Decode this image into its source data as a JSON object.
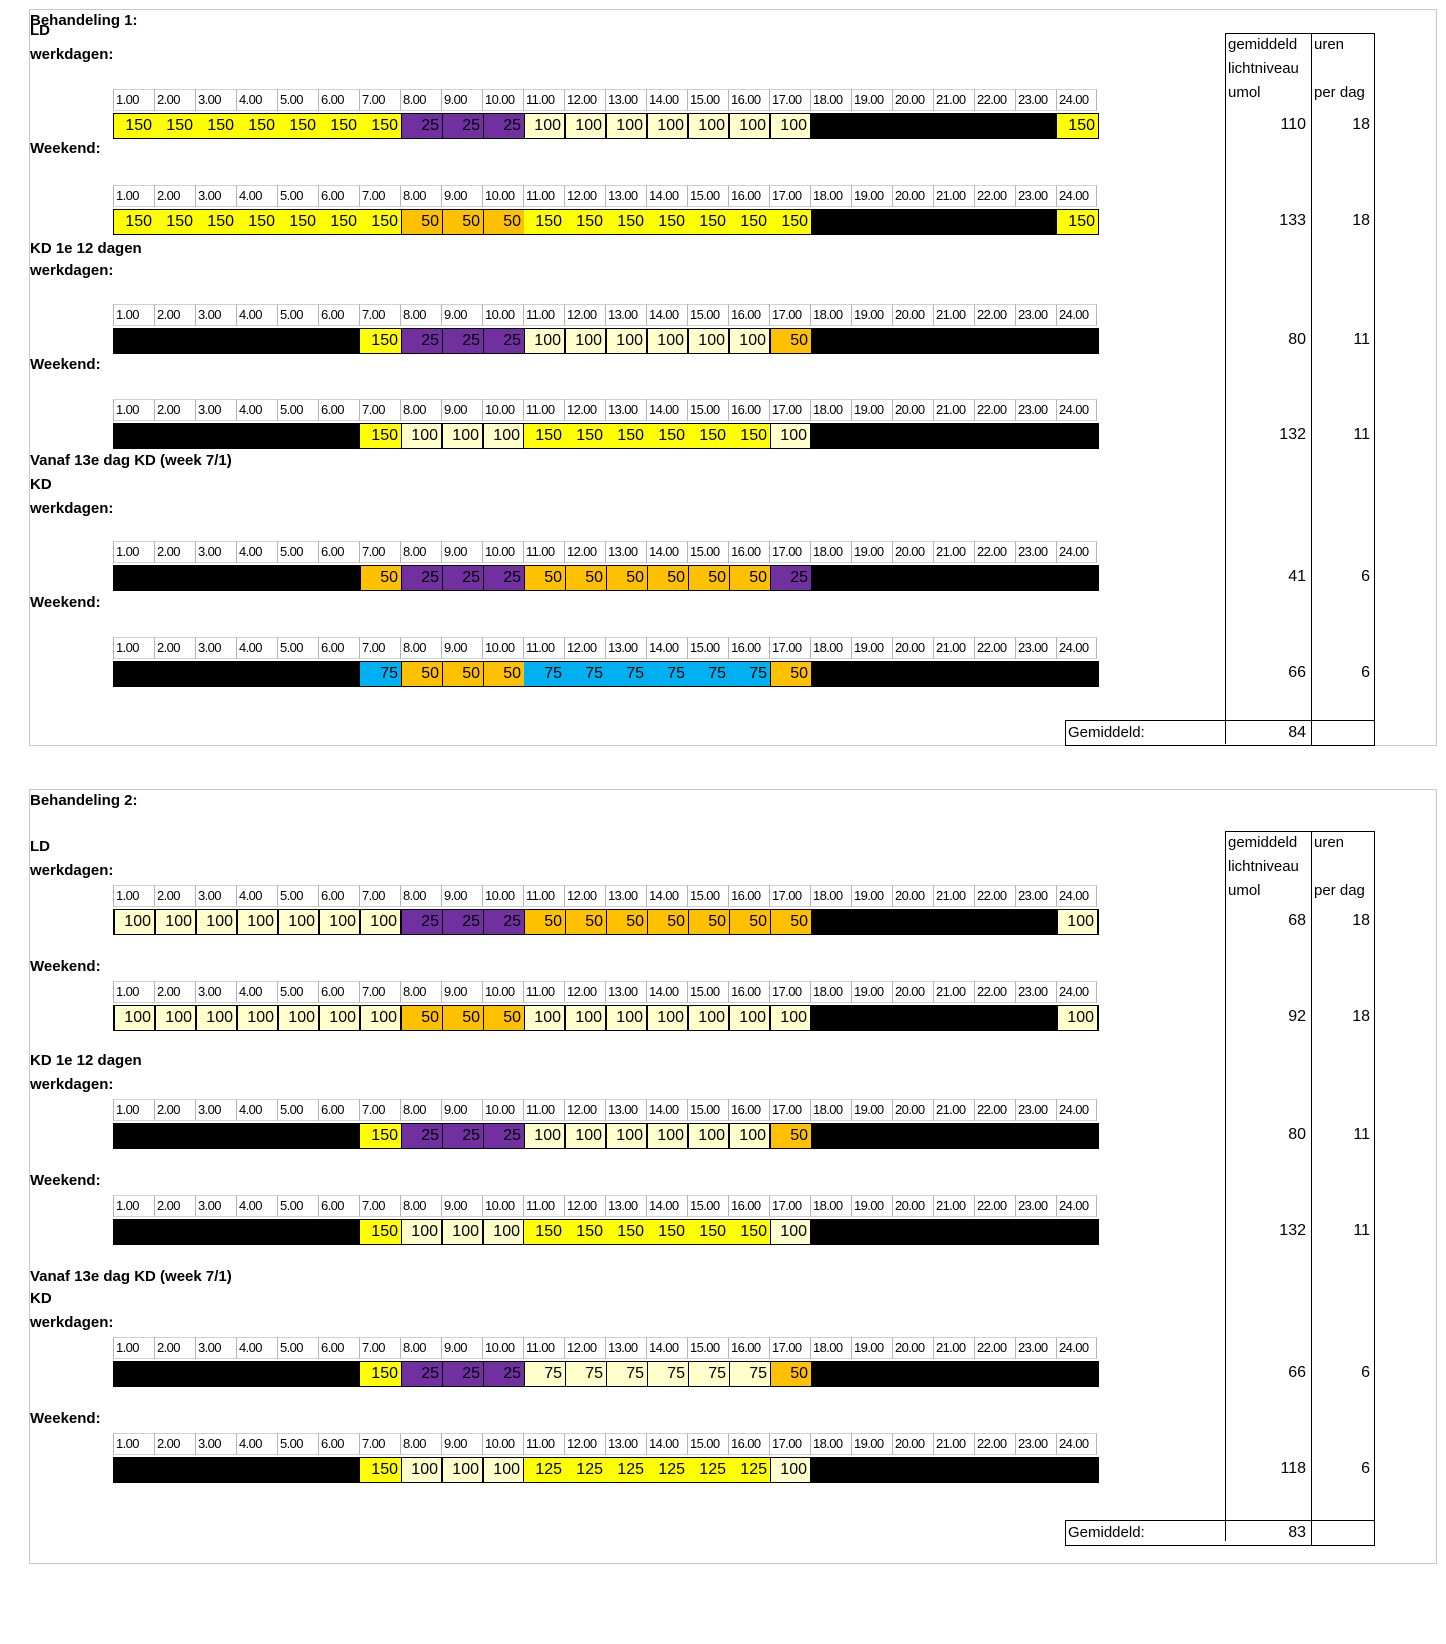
{
  "hours": [
    "1.00",
    "2.00",
    "3.00",
    "4.00",
    "5.00",
    "6.00",
    "7.00",
    "8.00",
    "9.00",
    "10.00",
    "11.00",
    "12.00",
    "13.00",
    "14.00",
    "15.00",
    "16.00",
    "17.00",
    "18.00",
    "19.00",
    "20.00",
    "21.00",
    "22.00",
    "23.00",
    "24.00"
  ],
  "side_header": {
    "col1_line1": "gemiddeld",
    "col1_line2": "lichtniveau",
    "col1_line3": "umol",
    "col2_line1": "uren",
    "col2_line3": "per dag"
  },
  "average_label": "Gemiddeld:",
  "legend_colors": {
    "150": "#ffff00",
    "125": "#ffff00",
    "100": "#ffffcc",
    "75": "#00b0f0",
    "50": "#ffc000",
    "25": "#7030a0",
    "0": "#000000"
  },
  "treatments": [
    {
      "title": "Behandeling 1:",
      "average": "84",
      "schedules": [
        {
          "labels": [
            "LD",
            "werkdagen:"
          ],
          "values": [
            150,
            150,
            150,
            150,
            150,
            150,
            150,
            25,
            25,
            25,
            100,
            100,
            100,
            100,
            100,
            100,
            100,
            0,
            0,
            0,
            0,
            0,
            0,
            150
          ],
          "avg": "110",
          "hours_per_day": "18"
        },
        {
          "labels": [
            "Weekend:"
          ],
          "values": [
            150,
            150,
            150,
            150,
            150,
            150,
            150,
            50,
            50,
            50,
            150,
            150,
            150,
            150,
            150,
            150,
            150,
            0,
            0,
            0,
            0,
            0,
            0,
            150
          ],
          "avg": "133",
          "hours_per_day": "18"
        },
        {
          "labels": [
            "KD 1e 12 dagen",
            "werkdagen:"
          ],
          "values": [
            0,
            0,
            0,
            0,
            0,
            0,
            150,
            25,
            25,
            25,
            100,
            100,
            100,
            100,
            100,
            100,
            50,
            0,
            0,
            0,
            0,
            0,
            0,
            0
          ],
          "avg": "80",
          "hours_per_day": "11"
        },
        {
          "labels": [
            "Weekend:"
          ],
          "values": [
            0,
            0,
            0,
            0,
            0,
            0,
            150,
            100,
            100,
            100,
            150,
            150,
            150,
            150,
            150,
            150,
            100,
            0,
            0,
            0,
            0,
            0,
            0,
            0
          ],
          "avg": "132",
          "hours_per_day": "11"
        },
        {
          "labels": [
            "Vanaf 13e dag KD (week 7/1)",
            "KD",
            "werkdagen:"
          ],
          "values": [
            0,
            0,
            0,
            0,
            0,
            0,
            50,
            25,
            25,
            25,
            50,
            50,
            50,
            50,
            50,
            50,
            25,
            0,
            0,
            0,
            0,
            0,
            0,
            0
          ],
          "avg": "41",
          "hours_per_day": "6"
        },
        {
          "labels": [
            "Weekend:"
          ],
          "values": [
            0,
            0,
            0,
            0,
            0,
            0,
            75,
            50,
            50,
            50,
            75,
            75,
            75,
            75,
            75,
            75,
            50,
            0,
            0,
            0,
            0,
            0,
            0,
            0
          ],
          "blue75": true,
          "avg": "66",
          "hours_per_day": "6"
        }
      ]
    },
    {
      "title": "Behandeling 2:",
      "average": "83",
      "schedules": [
        {
          "labels": [
            "LD",
            "werkdagen:"
          ],
          "values": [
            100,
            100,
            100,
            100,
            100,
            100,
            100,
            25,
            25,
            25,
            50,
            50,
            50,
            50,
            50,
            50,
            50,
            0,
            0,
            0,
            0,
            0,
            0,
            100
          ],
          "avg": "68",
          "hours_per_day": "18"
        },
        {
          "labels": [
            "Weekend:"
          ],
          "values": [
            100,
            100,
            100,
            100,
            100,
            100,
            100,
            50,
            50,
            50,
            100,
            100,
            100,
            100,
            100,
            100,
            100,
            0,
            0,
            0,
            0,
            0,
            0,
            100
          ],
          "avg": "92",
          "hours_per_day": "18"
        },
        {
          "labels": [
            "KD 1e 12 dagen",
            "werkdagen:"
          ],
          "values": [
            0,
            0,
            0,
            0,
            0,
            0,
            150,
            25,
            25,
            25,
            100,
            100,
            100,
            100,
            100,
            100,
            50,
            0,
            0,
            0,
            0,
            0,
            0,
            0
          ],
          "avg": "80",
          "hours_per_day": "11"
        },
        {
          "labels": [
            "Weekend:"
          ],
          "values": [
            0,
            0,
            0,
            0,
            0,
            0,
            150,
            100,
            100,
            100,
            150,
            150,
            150,
            150,
            150,
            150,
            100,
            0,
            0,
            0,
            0,
            0,
            0,
            0
          ],
          "avg": "132",
          "hours_per_day": "11"
        },
        {
          "labels": [
            "Vanaf 13e dag KD (week 7/1)",
            "KD",
            "werkdagen:"
          ],
          "values": [
            0,
            0,
            0,
            0,
            0,
            0,
            150,
            25,
            25,
            25,
            75,
            75,
            75,
            75,
            75,
            75,
            50,
            0,
            0,
            0,
            0,
            0,
            0,
            0
          ],
          "avg": "66",
          "hours_per_day": "6"
        },
        {
          "labels": [
            "Weekend:"
          ],
          "values": [
            0,
            0,
            0,
            0,
            0,
            0,
            150,
            100,
            100,
            100,
            125,
            125,
            125,
            125,
            125,
            125,
            100,
            0,
            0,
            0,
            0,
            0,
            0,
            0
          ],
          "avg": "118",
          "hours_per_day": "6"
        }
      ]
    }
  ]
}
